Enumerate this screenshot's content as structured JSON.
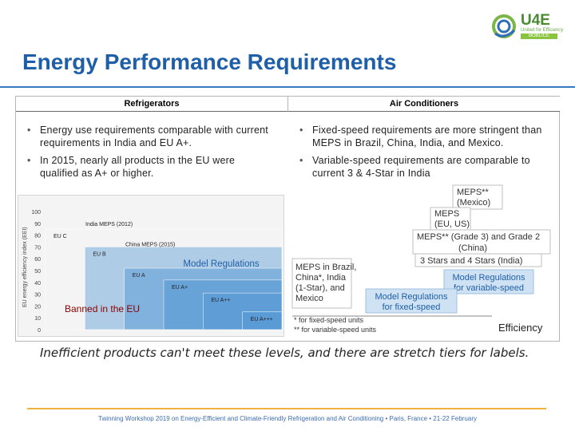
{
  "logo": {
    "name": "U4E",
    "tagline": "United for Efficiency",
    "bar_text": "BOBLICE"
  },
  "title": "Energy Performance Requirements",
  "columns": [
    {
      "header": "Refrigerators",
      "bullets": [
        "Energy use requirements comparable with current requirements in India and EU A+.",
        "In 2015, nearly all products in the EU were qualified as A+ or higher."
      ]
    },
    {
      "header": "Air Conditioners",
      "bullets": [
        "Fixed-speed requirements are more stringent than MEPS in Brazil, China, India, and Mexico.",
        "Variable-speed requirements are comparable to current 3 & 4-Star in India"
      ]
    }
  ],
  "fridge_chart": {
    "ylabel": "EU energy efficiency index (EEI)",
    "yticks": [
      0,
      10,
      20,
      30,
      40,
      50,
      60,
      70,
      80,
      90,
      100
    ],
    "labels": [
      "EU C",
      "India MEPS (2012)",
      "EU B",
      "China MEPS (2015)",
      "EU A",
      "EU A+",
      "Model Regulations",
      "EU A++",
      "EU A+++"
    ],
    "steps": [
      {
        "label": "EU C",
        "value": 85
      },
      {
        "label": "EU B",
        "value": 70
      },
      {
        "label": "EU A",
        "value": 52
      },
      {
        "label": "EU A+",
        "value": 42
      },
      {
        "label": "EU A++",
        "value": 31
      },
      {
        "label": "EU A+++",
        "value": 15
      }
    ],
    "meps": [
      {
        "label": "India MEPS (2012)",
        "value": 87
      },
      {
        "label": "China MEPS (2015)",
        "value": 70
      }
    ],
    "model_label": "Model Regulations",
    "banned": "Banned in the EU",
    "colors": {
      "step": "#5b9bd5",
      "banned": "#1f4e79"
    }
  },
  "ac_chart": {
    "boxes": [
      {
        "id": "mexico",
        "lines": [
          "MEPS**",
          "(Mexico)"
        ]
      },
      {
        "id": "eu-us",
        "lines": [
          "MEPS",
          "(EU, US)"
        ]
      },
      {
        "id": "grade",
        "lines": [
          "MEPS** (Grade 3) and Grade 2",
          "(China)"
        ]
      },
      {
        "id": "stars",
        "lines": [
          "3 Stars and 4 Stars  (India)"
        ]
      },
      {
        "id": "brazil",
        "lines": [
          "MEPS in Brazil,",
          "China*, India",
          "(1-Star), and",
          "Mexico"
        ]
      }
    ],
    "model_variable": [
      "Model Regulations",
      "for variable-speed"
    ],
    "model_fixed": [
      "Model Regulations",
      "for fixed-speed"
    ],
    "notes": [
      "* for fixed-speed units",
      "** for variable-speed units"
    ],
    "axis_label": "Efficiency",
    "colors": {
      "box_border": "#bfbfbf",
      "model_fill": "#cfe2f3",
      "model_text": "#1f5fa8"
    }
  },
  "tagline": "Inefficient products can't meet these levels, and there are stretch tiers for labels.",
  "footer": "Twinning Workshop 2019 on Energy-Efficient and Climate-Friendly Refrigeration and Air Conditioning • Paris, France • 21-22 February"
}
